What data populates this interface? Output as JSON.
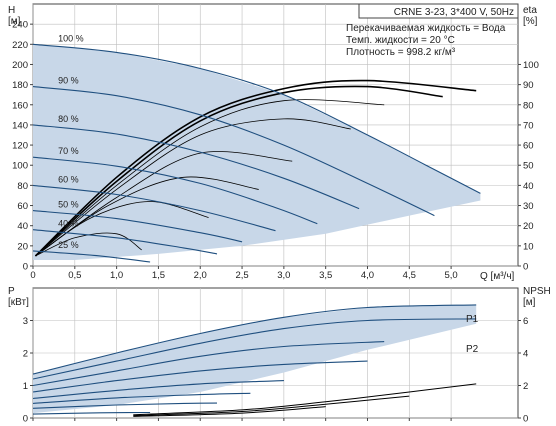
{
  "header": {
    "model": "CRNE 3-23, 3*400 V, 50Hz",
    "info_lines": [
      "Перекачиваемая жидкость = Вода",
      "Темп. жидкости = 20 °C",
      "Плотность = 998.2 кг/м³"
    ]
  },
  "colors": {
    "envelope_fill": "#c8d7e8",
    "curve": "#1f4f7f",
    "efficiency": "#000000",
    "grid": "#bfbfbf"
  },
  "chart_data": [
    {
      "id": "head",
      "type": "line",
      "xlabel": "Q [м³/ч]",
      "ylabel": "H\n[м]",
      "y2label": "eta\n[%]",
      "xlim": [
        0,
        5.8
      ],
      "ylim": [
        0,
        260
      ],
      "y2lim": [
        0,
        130
      ],
      "x_ticks": [
        "0",
        "0,5",
        "1,0",
        "1,5",
        "2,0",
        "2,5",
        "3,0",
        "3,5",
        "4,0",
        "4,5",
        "5,0"
      ],
      "y_ticks": [
        0,
        20,
        40,
        60,
        80,
        100,
        120,
        140,
        160,
        180,
        200,
        220,
        240
      ],
      "y2_ticks": [
        0,
        10,
        20,
        30,
        40,
        50,
        60,
        70,
        80,
        90,
        100
      ],
      "speed_curves": [
        {
          "label": "100 %",
          "points": [
            [
              0,
              220
            ],
            [
              1,
              212
            ],
            [
              2,
              196
            ],
            [
              3,
              170
            ],
            [
              4,
              130
            ],
            [
              4.7,
              100
            ],
            [
              5.35,
              72
            ]
          ]
        },
        {
          "label": "90 %",
          "points": [
            [
              0,
              178
            ],
            [
              1,
              169
            ],
            [
              2,
              150
            ],
            [
              3,
              120
            ],
            [
              4,
              82
            ],
            [
              4.8,
              50
            ]
          ]
        },
        {
          "label": "80 %",
          "points": [
            [
              0,
              140
            ],
            [
              1,
              131
            ],
            [
              2,
              113
            ],
            [
              3,
              87
            ],
            [
              3.9,
              57
            ]
          ]
        },
        {
          "label": "70 %",
          "points": [
            [
              0,
              108
            ],
            [
              1,
              99
            ],
            [
              2,
              82
            ],
            [
              2.9,
              58
            ],
            [
              3.4,
              42
            ]
          ]
        },
        {
          "label": "60 %",
          "points": [
            [
              0,
              80
            ],
            [
              1,
              71
            ],
            [
              2,
              55
            ],
            [
              2.9,
              35
            ]
          ]
        },
        {
          "label": "50 %",
          "points": [
            [
              0,
              55
            ],
            [
              1,
              47
            ],
            [
              2,
              33
            ],
            [
              2.5,
              24
            ]
          ]
        },
        {
          "label": "40 %",
          "points": [
            [
              0,
              36
            ],
            [
              1,
              28
            ],
            [
              1.8,
              18
            ],
            [
              2.2,
              12
            ]
          ]
        },
        {
          "label": "25 %",
          "points": [
            [
              0,
              15
            ],
            [
              0.8,
              10
            ],
            [
              1.4,
              4
            ]
          ]
        }
      ],
      "efficiency_curves": [
        [
          [
            0.03,
            5
          ],
          [
            1,
            44
          ],
          [
            2,
            74
          ],
          [
            3,
            88
          ],
          [
            4,
            92
          ],
          [
            5.3,
            87
          ]
        ],
        [
          [
            0.03,
            5
          ],
          [
            1,
            42
          ],
          [
            2,
            72
          ],
          [
            3,
            86
          ],
          [
            4,
            89
          ],
          [
            4.9,
            84
          ]
        ],
        [
          [
            0.03,
            5
          ],
          [
            1,
            40
          ],
          [
            2,
            69
          ],
          [
            3,
            82
          ],
          [
            4.2,
            80
          ]
        ],
        [
          [
            0.03,
            5
          ],
          [
            1,
            38
          ],
          [
            2,
            65
          ],
          [
            3,
            73
          ],
          [
            3.8,
            68
          ]
        ],
        [
          [
            0.03,
            5
          ],
          [
            1,
            34
          ],
          [
            2,
            56
          ],
          [
            3.1,
            52
          ]
        ],
        [
          [
            0.03,
            5
          ],
          [
            0.9,
            30
          ],
          [
            1.8,
            44
          ],
          [
            2.7,
            38
          ]
        ],
        [
          [
            0.03,
            5
          ],
          [
            0.7,
            24
          ],
          [
            1.4,
            32
          ],
          [
            2.1,
            24
          ]
        ],
        [
          [
            0.03,
            5
          ],
          [
            0.5,
            14
          ],
          [
            1.0,
            16
          ],
          [
            1.3,
            8
          ]
        ]
      ],
      "envelope": [
        [
          0,
          220
        ],
        [
          1,
          212
        ],
        [
          2,
          196
        ],
        [
          3,
          170
        ],
        [
          4,
          130
        ],
        [
          4.7,
          100
        ],
        [
          5.35,
          72
        ],
        [
          5.35,
          65
        ],
        [
          4.5,
          50
        ],
        [
          3.5,
          32
        ],
        [
          2.5,
          20
        ],
        [
          1.5,
          12
        ],
        [
          0.5,
          6
        ],
        [
          0,
          6
        ]
      ]
    },
    {
      "id": "power",
      "type": "line",
      "ylabel": "P\n[кВт]",
      "y2label": "NPSH\n[м]",
      "xlim": [
        0,
        5.8
      ],
      "ylim": [
        0,
        4
      ],
      "y2lim": [
        0,
        8
      ],
      "y_ticks": [
        0,
        1,
        2,
        3
      ],
      "y2_ticks": [
        0,
        2,
        4,
        6
      ],
      "series_labels": [
        "P1",
        "P2"
      ],
      "power_curves": [
        [
          [
            0,
            1.35
          ],
          [
            1,
            2.0
          ],
          [
            2,
            2.6
          ],
          [
            3,
            3.1
          ],
          [
            4,
            3.4
          ],
          [
            5.3,
            3.48
          ]
        ],
        [
          [
            0,
            1.2
          ],
          [
            1,
            1.75
          ],
          [
            2,
            2.3
          ],
          [
            3,
            2.75
          ],
          [
            4,
            3.0
          ],
          [
            5.3,
            3.05
          ]
        ],
        [
          [
            0,
            1.0
          ],
          [
            1,
            1.45
          ],
          [
            2,
            1.9
          ],
          [
            3,
            2.2
          ],
          [
            4.2,
            2.35
          ]
        ],
        [
          [
            0,
            0.8
          ],
          [
            1,
            1.15
          ],
          [
            2,
            1.45
          ],
          [
            3,
            1.65
          ],
          [
            4.0,
            1.75
          ]
        ],
        [
          [
            0,
            0.6
          ],
          [
            1,
            0.85
          ],
          [
            2,
            1.05
          ],
          [
            3.0,
            1.15
          ]
        ],
        [
          [
            0,
            0.45
          ],
          [
            1,
            0.62
          ],
          [
            2,
            0.72
          ],
          [
            2.6,
            0.76
          ]
        ],
        [
          [
            0,
            0.3
          ],
          [
            1,
            0.4
          ],
          [
            1.8,
            0.45
          ],
          [
            2.2,
            0.46
          ]
        ],
        [
          [
            0,
            0.12
          ],
          [
            0.8,
            0.16
          ],
          [
            1.4,
            0.17
          ]
        ]
      ],
      "p1_envelope": [
        [
          0,
          1.35
        ],
        [
          1,
          2.0
        ],
        [
          2,
          2.6
        ],
        [
          3,
          3.1
        ],
        [
          4,
          3.4
        ],
        [
          5.3,
          3.48
        ],
        [
          5.3,
          2.9
        ],
        [
          4,
          2.1
        ],
        [
          3,
          1.4
        ],
        [
          2,
          0.8
        ],
        [
          1,
          0.4
        ],
        [
          0,
          0.15
        ]
      ],
      "npsh_curves": [
        [
          [
            1.2,
            0.2
          ],
          [
            2.5,
            0.5
          ],
          [
            3.5,
            1.0
          ],
          [
            4.5,
            1.6
          ],
          [
            5.3,
            2.1
          ]
        ],
        [
          [
            1.2,
            0.15
          ],
          [
            2.5,
            0.4
          ],
          [
            3.5,
            0.85
          ],
          [
            4.5,
            1.35
          ]
        ],
        [
          [
            1.2,
            0.1
          ],
          [
            2.5,
            0.3
          ],
          [
            3.5,
            0.7
          ]
        ]
      ]
    }
  ]
}
